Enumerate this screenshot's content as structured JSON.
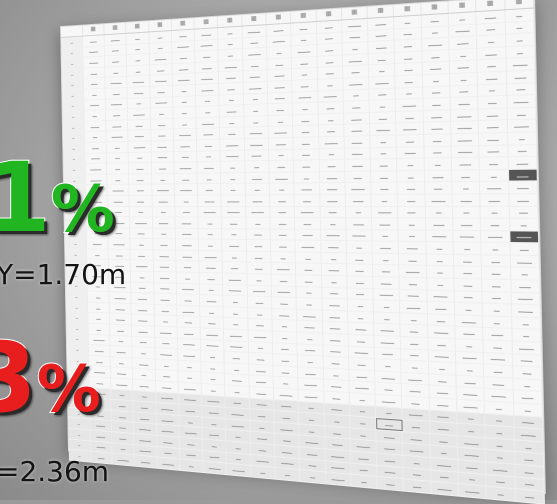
{
  "overlay": {
    "green_percent": {
      "digit": "1",
      "sign": "%"
    },
    "green_measure": "Y=1.70m",
    "red_percent": {
      "digit": "3",
      "sign": "%"
    },
    "red_measure": "=2.36m"
  },
  "colors": {
    "green": "#22b522",
    "red": "#e81e1e",
    "sheet_bg": "#f7f7f7",
    "backdrop": "#a4a4a4"
  }
}
